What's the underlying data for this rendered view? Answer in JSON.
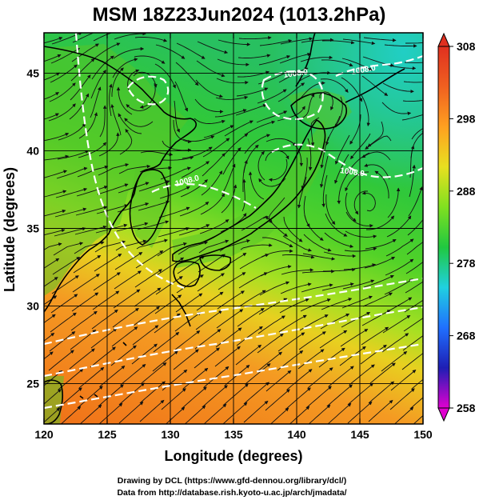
{
  "figure": {
    "title": "MSM 18Z23Jun2024 (1013.2hPa)",
    "xlabel": "Longitude (degrees)",
    "ylabel": "Latitude  (degrees)",
    "credit_line1": "Drawing by DCL (https://www.gfd-dennou.org/library/dcl/)",
    "credit_line2": "Data from http://database.rish.kyoto-u.ac.jp/arch/jmadata/"
  },
  "map_data": {
    "lon_range": [
      120,
      150
    ],
    "lat_range": [
      22.4,
      47.6
    ],
    "lon_ticks": [
      120,
      125,
      130,
      135,
      140,
      145,
      150
    ],
    "lat_ticks": [
      25,
      30,
      35,
      40,
      45
    ],
    "grid": true,
    "colorbar": {
      "min": 258,
      "max": 308,
      "ticks": [
        258,
        268,
        278,
        288,
        298,
        308
      ],
      "colors": [
        "#e000d0",
        "#1e1eb4",
        "#2070ff",
        "#20d0e0",
        "#20c840",
        "#80e020",
        "#e8e020",
        "#ffa020",
        "#f06020",
        "#e03020"
      ]
    },
    "isobar_labels": [
      "1008.0",
      "1008.0",
      "1008.0",
      "1008.0"
    ],
    "line_colors": {
      "streamline": "#111111",
      "isobar": "#ffffff",
      "coast": "#000000"
    }
  },
  "legend_position": "right"
}
